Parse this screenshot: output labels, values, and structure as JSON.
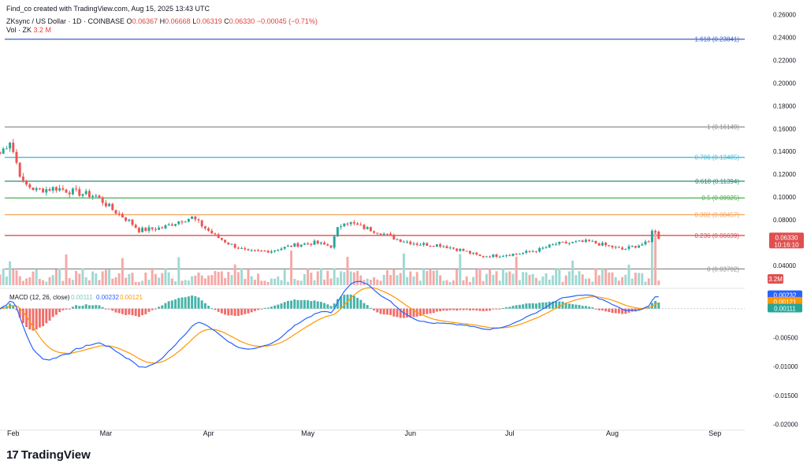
{
  "header": {
    "line1": "Find_co created with TradingView.com, Aug 15, 2025 13:43 UTC",
    "symbol": "ZKsync / US Dollar · 1D · COINBASE",
    "o_label": "O",
    "o_value": "0.06367",
    "h_label": "H",
    "h_value": "0.06668",
    "l_label": "L",
    "l_value": "0.06319",
    "c_label": "C",
    "c_value": "0.06330",
    "change": "−0.00045 (−0.71%)",
    "vol_label": "Vol · ZK",
    "vol_value": "3.2 M"
  },
  "branding": {
    "logo_text": "TradingView",
    "logo_mark": "17"
  },
  "chart_data": [
    {
      "type": "candlestick",
      "title": "ZKsync / US Dollar · 1D · COINBASE",
      "ylim": [
        0.02,
        0.27
      ],
      "y_ticks": [
        "0.26000",
        "0.24000",
        "0.22000",
        "0.20000",
        "0.18000",
        "0.16000",
        "0.14000",
        "0.12000",
        "0.10000",
        "0.08000",
        "0.04000"
      ],
      "y_tick_values": [
        0.26,
        0.24,
        0.22,
        0.2,
        0.18,
        0.16,
        0.14,
        0.12,
        0.1,
        0.08,
        0.04
      ],
      "x_ticks": [
        "Feb",
        "Mar",
        "Apr",
        "May",
        "Jun",
        "Jul",
        "Aug",
        "Sep"
      ],
      "x_tick_dates": [
        "2025-02-01",
        "2025-03-01",
        "2025-04-01",
        "2025-05-01",
        "2025-06-01",
        "2025-07-01",
        "2025-08-01",
        "2025-09-01"
      ],
      "date_range": [
        "2025-01-28",
        "2025-09-10"
      ],
      "last_date": "2025-08-15",
      "close_key_points": [
        [
          "2025-01-28",
          0.138
        ],
        [
          "2025-01-31",
          0.15
        ],
        [
          "2025-02-02",
          0.13
        ],
        [
          "2025-02-04",
          0.112
        ],
        [
          "2025-02-08",
          0.106
        ],
        [
          "2025-02-14",
          0.108
        ],
        [
          "2025-02-20",
          0.104
        ],
        [
          "2025-02-26",
          0.101
        ],
        [
          "2025-03-03",
          0.089
        ],
        [
          "2025-03-08",
          0.079
        ],
        [
          "2025-03-11",
          0.071
        ],
        [
          "2025-03-18",
          0.073
        ],
        [
          "2025-03-24",
          0.08
        ],
        [
          "2025-03-27",
          0.082
        ],
        [
          "2025-04-03",
          0.066
        ],
        [
          "2025-04-08",
          0.058
        ],
        [
          "2025-04-13",
          0.052
        ],
        [
          "2025-04-20",
          0.053
        ],
        [
          "2025-04-27",
          0.058
        ],
        [
          "2025-05-03",
          0.06
        ],
        [
          "2025-05-08",
          0.057
        ],
        [
          "2025-05-10",
          0.072
        ],
        [
          "2025-05-12",
          0.079
        ],
        [
          "2025-05-17",
          0.074
        ],
        [
          "2025-05-23",
          0.069
        ],
        [
          "2025-05-28",
          0.063
        ],
        [
          "2025-06-03",
          0.059
        ],
        [
          "2025-06-10",
          0.058
        ],
        [
          "2025-06-17",
          0.053
        ],
        [
          "2025-06-22",
          0.048
        ],
        [
          "2025-06-28",
          0.049
        ],
        [
          "2025-07-05",
          0.051
        ],
        [
          "2025-07-10",
          0.054
        ],
        [
          "2025-07-15",
          0.059
        ],
        [
          "2025-07-20",
          0.06
        ],
        [
          "2025-07-25",
          0.061
        ],
        [
          "2025-07-31",
          0.057
        ],
        [
          "2025-08-04",
          0.054
        ],
        [
          "2025-08-09",
          0.058
        ],
        [
          "2025-08-12",
          0.06
        ],
        [
          "2025-08-13",
          0.072
        ],
        [
          "2025-08-14",
          0.069
        ],
        [
          "2025-08-15",
          0.0633
        ]
      ],
      "fibonacci": [
        {
          "label": "1.618 (0.23841)",
          "value": 0.23841,
          "color": "#3d5fc9"
        },
        {
          "label": "1 (0.16149)",
          "value": 0.16149,
          "color": "#8e8e8e"
        },
        {
          "label": "0.786 (0.13485)",
          "value": 0.13485,
          "color": "#44bcd8"
        },
        {
          "label": "0.618 (0.11394)",
          "value": 0.11394,
          "color": "#2a8a7a"
        },
        {
          "label": "0.5 (0.09925)",
          "value": 0.09925,
          "color": "#4caf50"
        },
        {
          "label": "0.382 (0.08457)",
          "value": 0.08457,
          "color": "#f5a35a"
        },
        {
          "label": "0.236 (0.06639)",
          "value": 0.06639,
          "color": "#e04f4f"
        },
        {
          "label": "0 (0.03702)",
          "value": 0.03702,
          "color": "#8e8e8e"
        }
      ],
      "price_label": "0.06330",
      "countdown_label": "10:16:10",
      "price_label_color": "#e04f4f",
      "volume_label": "3.2M",
      "volume_label_color": "#e04f4f",
      "up_color": "#26a69a",
      "down_color": "#ef5350"
    },
    {
      "type": "macd",
      "title": "MACD (12, 26, close)",
      "values_printed": [
        "0.00111",
        "0.00232",
        "0.00121"
      ],
      "macd_value": 0.00232,
      "signal_value": 0.00121,
      "hist_value": 0.00111,
      "macd_color": "#2962ff",
      "signal_color": "#ff9800",
      "ylim": [
        -0.021,
        0.0035
      ],
      "y_ticks": [
        "0.00000",
        "-0.00500",
        "-0.01000",
        "-0.01500",
        "-0.02000"
      ],
      "y_tick_values": [
        0,
        -0.005,
        -0.01,
        -0.015,
        -0.02
      ]
    }
  ]
}
